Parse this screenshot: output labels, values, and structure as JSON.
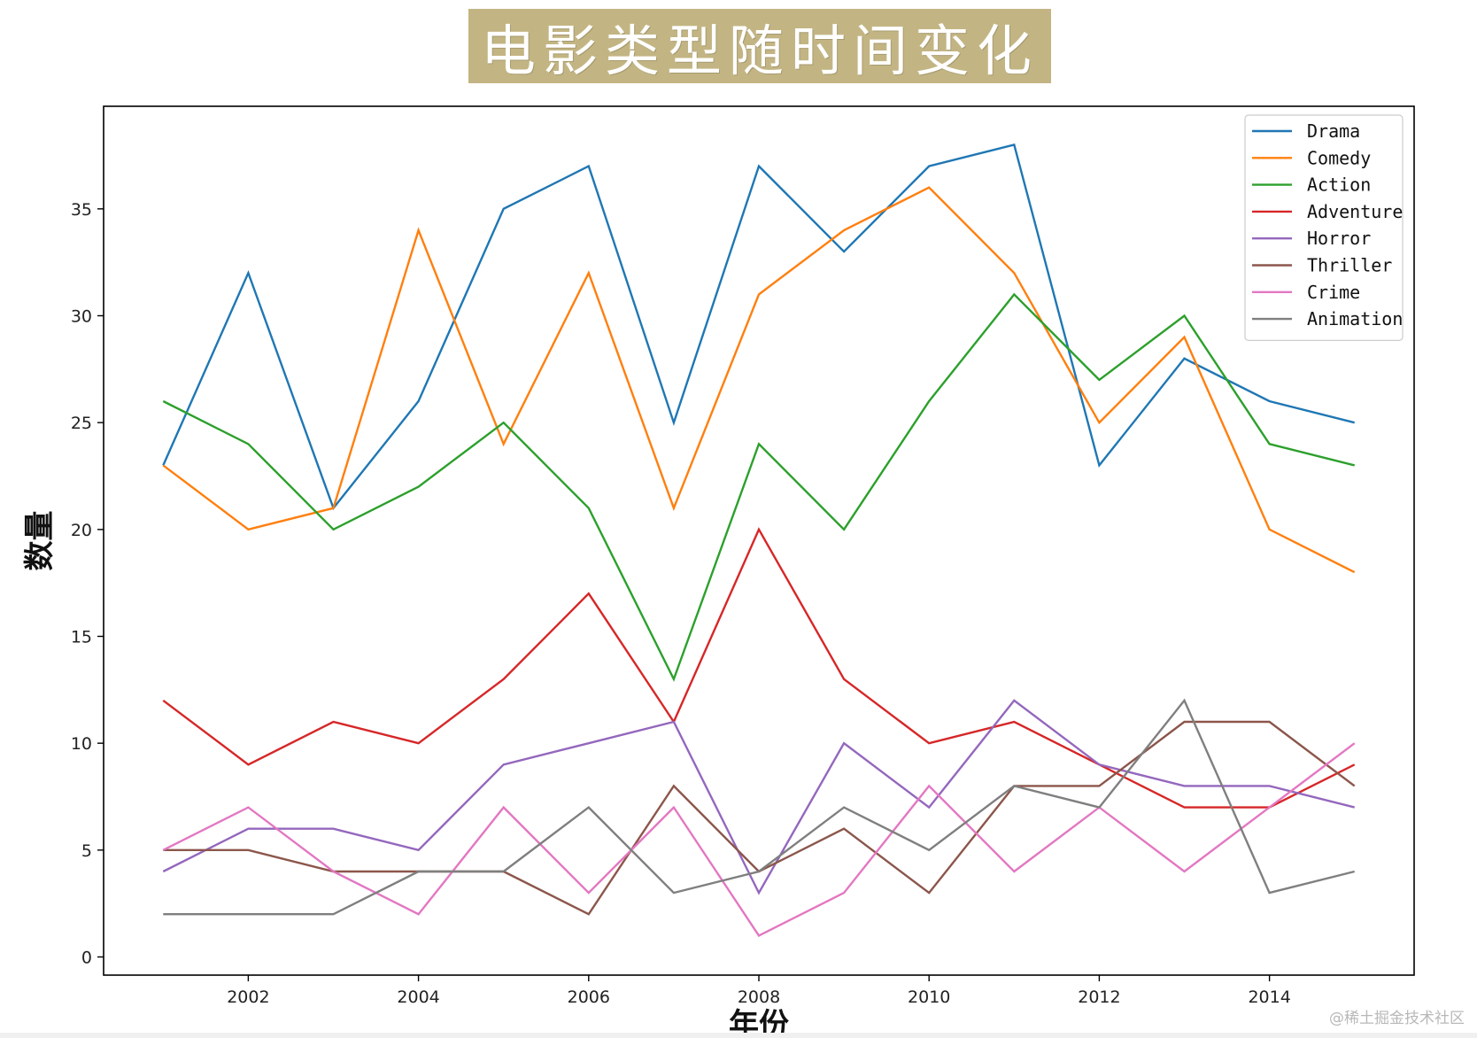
{
  "chart_data": {
    "type": "line",
    "title": "电影类型随时间变化",
    "xlabel": "年份",
    "ylabel": "数量",
    "x": [
      2001,
      2002,
      2003,
      2004,
      2005,
      2006,
      2007,
      2008,
      2009,
      2010,
      2011,
      2012,
      2013,
      2014,
      2015
    ],
    "xticks": [
      2002,
      2004,
      2006,
      2008,
      2010,
      2012,
      2014
    ],
    "yticks": [
      0,
      5,
      10,
      15,
      20,
      25,
      30,
      35
    ],
    "xlim": [
      2000.3,
      2015.7
    ],
    "ylim": [
      -0.85,
      39.8
    ],
    "grid": false,
    "legend_position": "top-right",
    "series": [
      {
        "name": "Drama",
        "color": "#1f77b4",
        "values": [
          23,
          32,
          21,
          26,
          35,
          37,
          25,
          37,
          33,
          37,
          38,
          23,
          28,
          26,
          25
        ]
      },
      {
        "name": "Comedy",
        "color": "#ff7f0e",
        "values": [
          23,
          20,
          21,
          34,
          24,
          32,
          21,
          31,
          34,
          36,
          32,
          25,
          29,
          20,
          18
        ]
      },
      {
        "name": "Action",
        "color": "#2ca02c",
        "values": [
          26,
          24,
          20,
          22,
          25,
          21,
          13,
          24,
          20,
          26,
          31,
          27,
          30,
          24,
          23
        ]
      },
      {
        "name": "Adventure",
        "color": "#d62728",
        "values": [
          12,
          9,
          11,
          10,
          13,
          17,
          11,
          20,
          13,
          10,
          11,
          9,
          7,
          7,
          9
        ]
      },
      {
        "name": "Horror",
        "color": "#9467bd",
        "values": [
          4,
          6,
          6,
          5,
          9,
          10,
          11,
          3,
          10,
          7,
          12,
          9,
          8,
          8,
          7
        ]
      },
      {
        "name": "Thriller",
        "color": "#8c564b",
        "values": [
          5,
          5,
          4,
          4,
          4,
          2,
          8,
          4,
          6,
          3,
          8,
          8,
          11,
          11,
          8
        ]
      },
      {
        "name": "Crime",
        "color": "#e377c2",
        "values": [
          5,
          7,
          4,
          2,
          7,
          3,
          7,
          1,
          3,
          8,
          4,
          7,
          4,
          7,
          10
        ]
      },
      {
        "name": "Animation",
        "color": "#7f7f7f",
        "values": [
          2,
          2,
          2,
          4,
          4,
          7,
          3,
          4,
          7,
          5,
          8,
          7,
          12,
          3,
          4
        ]
      }
    ]
  },
  "watermark": "@稀土掘金技术社区",
  "colors": {
    "title_bg": "#c3b583",
    "title_text": "#ffffff"
  }
}
